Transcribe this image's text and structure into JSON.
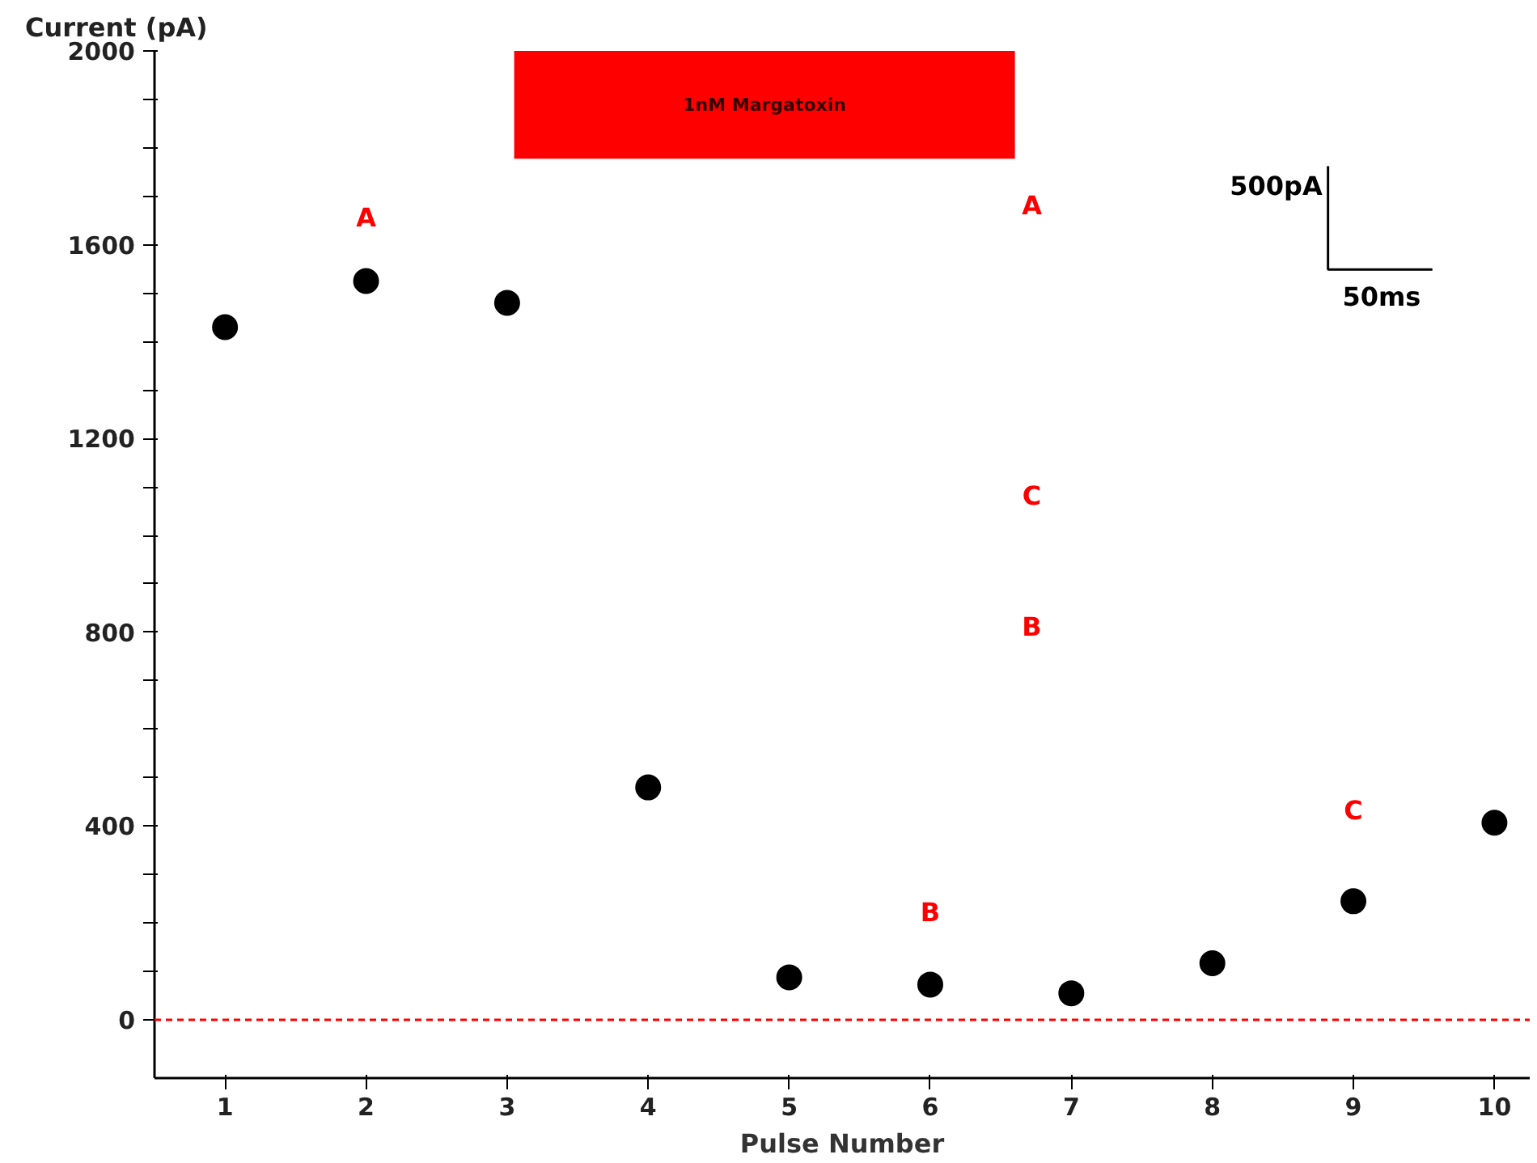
{
  "chart_data": {
    "type": "scatter",
    "xlabel": "Pulse Number",
    "ylabel": "Current (pA)",
    "x": [
      1,
      2,
      3,
      4,
      5,
      6,
      7,
      8,
      9,
      10
    ],
    "values": [
      1430,
      1525,
      1480,
      480,
      88,
      73,
      55,
      117,
      245,
      407
    ],
    "color": "#000000",
    "marker": "circle",
    "xlim": [
      0.5,
      10.25
    ],
    "ylim": [
      -120,
      2000
    ],
    "xticks": [
      1,
      2,
      3,
      4,
      5,
      6,
      7,
      8,
      9,
      10
    ],
    "yticks": [
      0,
      {
        "value": 100,
        "label": null
      },
      {
        "value": 200,
        "label": null
      },
      {
        "value": 300,
        "label": null
      },
      400,
      {
        "value": 500,
        "label": null
      },
      {
        "value": 600,
        "label": null
      },
      {
        "value": 700,
        "label": null
      },
      800,
      {
        "value": 900,
        "label": null
      },
      {
        "value": 1000,
        "label": null
      },
      {
        "value": 1100,
        "label": null
      },
      1200,
      {
        "value": 1300,
        "label": null
      },
      {
        "value": 1400,
        "label": null
      },
      {
        "value": 1500,
        "label": null
      },
      1600,
      {
        "value": 1700,
        "label": null
      },
      {
        "value": 1800,
        "label": null
      },
      {
        "value": 1900,
        "label": null
      },
      2000
    ],
    "ref_lines": [
      {
        "axis": "y",
        "value": 0,
        "color": "#ff0000",
        "line_style": "dashed"
      }
    ],
    "bands": [
      {
        "axis": "x",
        "from": 3.05,
        "to": 6.6,
        "label": "1nM Margatoxin",
        "color": "#ff0000"
      }
    ],
    "annotations": [
      "A",
      "B",
      "C",
      "500pA",
      "50ms",
      "A",
      "C",
      "B"
    ],
    "grid": false
  }
}
